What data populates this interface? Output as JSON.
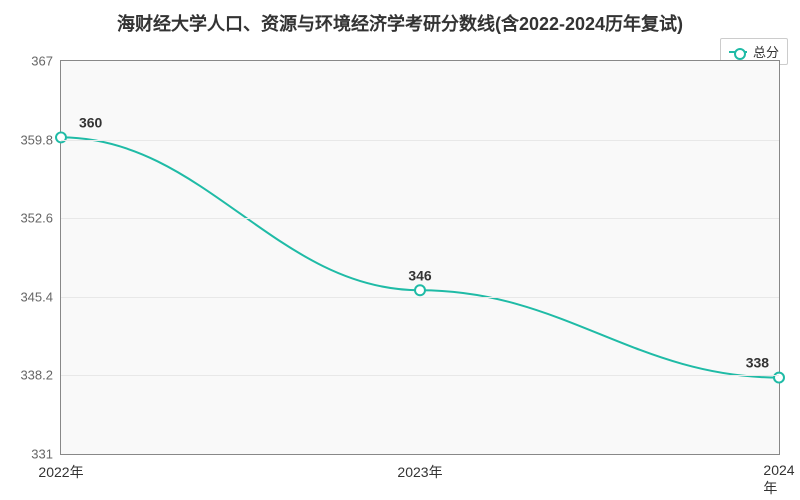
{
  "chart": {
    "type": "line",
    "title": "海财经大学人口、资源与环境经济学考研分数线(含2022-2024历年复试)",
    "title_fontsize": 18,
    "legend": {
      "label": "总分",
      "color": "#1fbba6"
    },
    "background_color": "#ffffff",
    "plot_background": "#f9f9f9",
    "border_color": "#888888",
    "grid_color": "#e8e8e8",
    "line_color": "#1fbba6",
    "line_width": 2,
    "marker_style": "circle",
    "marker_size": 5,
    "ylim": [
      331,
      367
    ],
    "yticks": [
      331,
      338.2,
      345.4,
      352.6,
      359.8,
      367
    ],
    "categories": [
      "2022年",
      "2023年",
      "2024年"
    ],
    "values": [
      360,
      346,
      338
    ],
    "value_labels": [
      "360",
      "346",
      "338"
    ],
    "label_fontsize": 14,
    "tick_fontsize": 13
  }
}
